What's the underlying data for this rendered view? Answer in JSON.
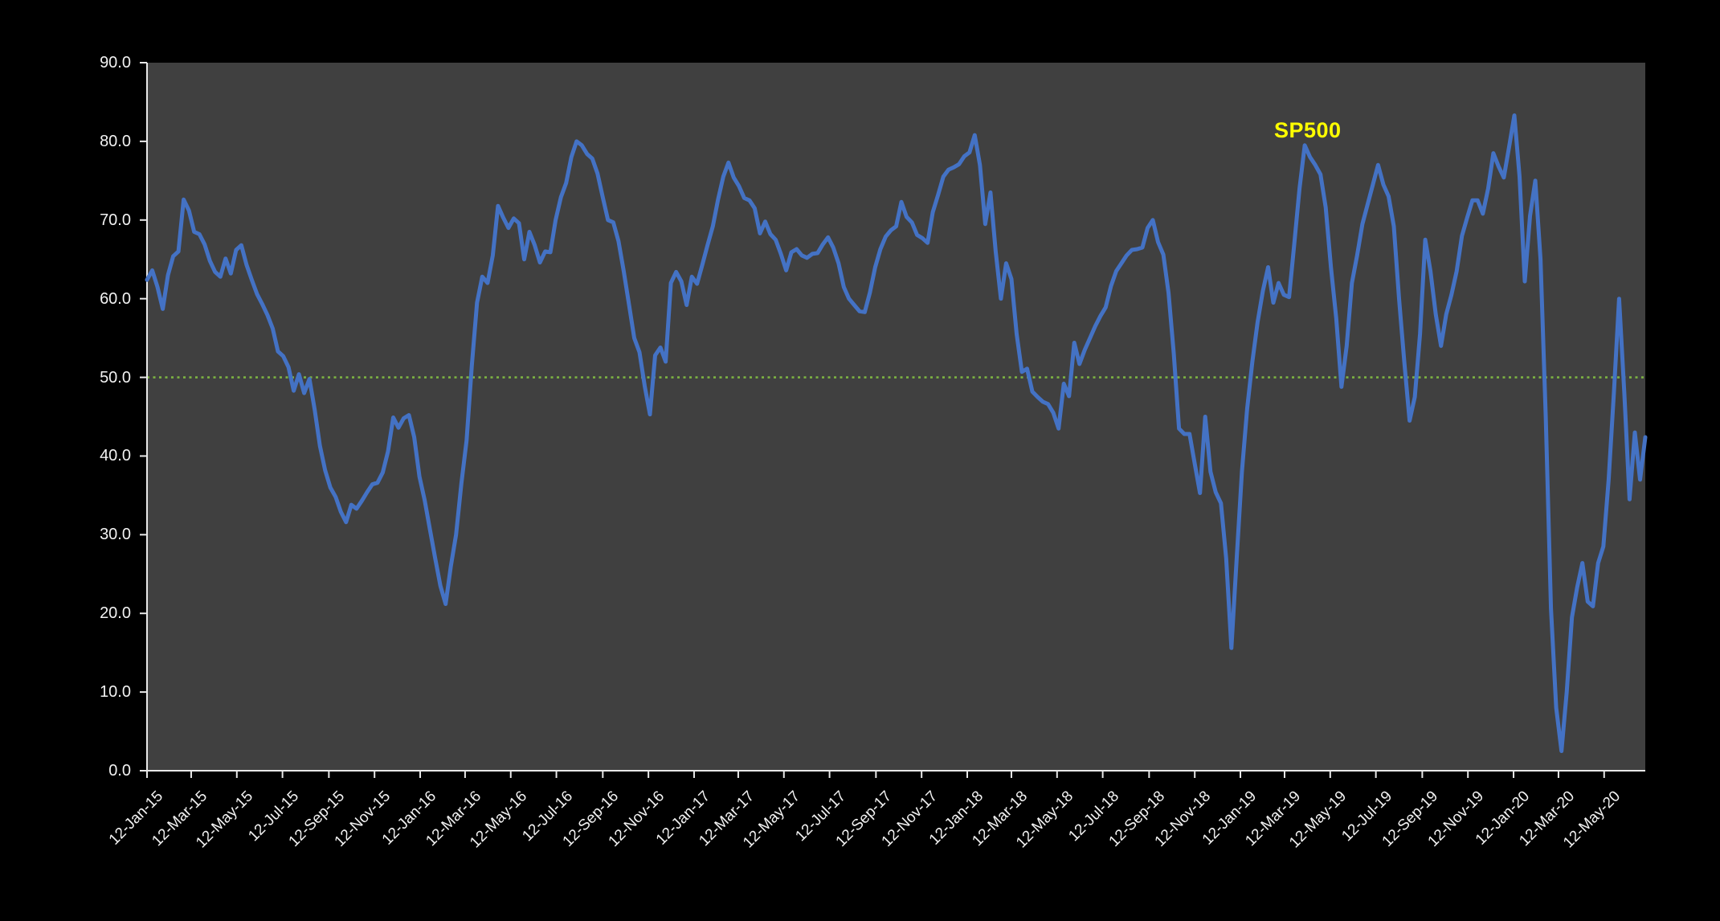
{
  "series_label": "SP500",
  "colors": {
    "page_background": "#000000",
    "plot_background": "#404040",
    "line": "#4472C4",
    "reference_line": "#7CB342",
    "axis": "#E8E8E8",
    "tick_text": "#F2F2F2",
    "series_label_text": "#FFFF00"
  },
  "chart_data": {
    "type": "line",
    "title": "",
    "xlabel": "",
    "ylabel": "",
    "ylim": [
      0,
      90
    ],
    "grid": "off",
    "legend_position": "none",
    "annotation": {
      "text": "SP500",
      "color": "#FFFF00"
    },
    "reference_line": {
      "value": 50,
      "style": "dotted",
      "color": "#7CB342"
    },
    "x_start_date": "2015-01-12",
    "x_step_days": 7,
    "x_tick_labels": [
      "12-Jan-15",
      "12-Mar-15",
      "12-May-15",
      "12-Jul-15",
      "12-Sep-15",
      "12-Nov-15",
      "12-Jan-16",
      "12-Mar-16",
      "12-May-16",
      "12-Jul-16",
      "12-Sep-16",
      "12-Nov-16",
      "12-Jan-17",
      "12-Mar-17",
      "12-May-17",
      "12-Jul-17",
      "12-Sep-17",
      "12-Nov-17",
      "12-Jan-18",
      "12-Mar-18",
      "12-May-18",
      "12-Jul-18",
      "12-Sep-18",
      "12-Nov-18",
      "12-Jan-19",
      "12-Mar-19",
      "12-May-19",
      "12-Jul-19",
      "12-Sep-19",
      "12-Nov-19",
      "12-Jan-20",
      "12-Mar-20",
      "12-May-20"
    ],
    "y_tick_labels": [
      "90.0",
      "80.0",
      "70.0",
      "60.0",
      "50.0",
      "40.0",
      "30.0",
      "20.0",
      "10.0",
      "0.0"
    ],
    "series": [
      {
        "name": "SP500",
        "color": "#4472C4",
        "values": [
          62.4,
          63.6,
          61.5,
          58.7,
          63.0,
          65.4,
          66.0,
          72.6,
          71.2,
          68.5,
          68.2,
          66.9,
          64.8,
          63.4,
          62.8,
          65.1,
          63.2,
          66.2,
          66.8,
          64.3,
          62.4,
          60.6,
          59.3,
          57.9,
          56.2,
          53.3,
          52.7,
          51.3,
          48.3,
          50.4,
          48.0,
          49.8,
          45.9,
          41.3,
          38.2,
          36.0,
          34.8,
          32.9,
          31.6,
          33.8,
          33.3,
          34.3,
          35.4,
          36.4,
          36.6,
          37.9,
          40.6,
          44.9,
          43.6,
          44.8,
          45.2,
          42.4,
          37.4,
          34.4,
          30.7,
          27.0,
          23.5,
          21.2,
          26.0,
          30.0,
          36.5,
          42.0,
          51.5,
          59.5,
          62.8,
          62.0,
          65.5,
          71.8,
          70.3,
          69.0,
          70.2,
          69.6,
          65.0,
          68.5,
          66.8,
          64.6,
          66.0,
          65.9,
          70.0,
          72.9,
          74.7,
          78.0,
          80.0,
          79.5,
          78.4,
          77.8,
          75.9,
          72.9,
          70.0,
          69.7,
          67.3,
          63.5,
          59.3,
          55.0,
          53.2,
          48.9,
          45.3,
          52.8,
          53.8,
          52.0,
          62.0,
          63.4,
          62.2,
          59.2,
          62.8,
          61.9,
          64.3,
          66.8,
          69.2,
          72.6,
          75.5,
          77.3,
          75.4,
          74.3,
          72.8,
          72.5,
          71.5,
          68.3,
          69.8,
          68.2,
          67.5,
          65.7,
          63.6,
          65.9,
          66.3,
          65.5,
          65.2,
          65.7,
          65.8,
          66.9,
          67.8,
          66.5,
          64.5,
          61.5,
          60.0,
          59.2,
          58.4,
          58.3,
          60.8,
          64.0,
          66.3,
          67.9,
          68.7,
          69.2,
          72.3,
          70.4,
          69.7,
          68.1,
          67.7,
          67.1,
          71.0,
          73.2,
          75.5,
          76.4,
          76.7,
          77.1,
          78.1,
          78.6,
          80.8,
          77.0,
          69.5,
          73.5,
          66.0,
          60.0,
          64.5,
          62.5,
          55.5,
          50.7,
          51.1,
          48.2,
          47.5,
          46.9,
          46.6,
          45.5,
          43.5,
          49.2,
          47.6,
          54.4,
          51.7,
          53.5,
          55.0,
          56.5,
          57.8,
          58.9,
          61.6,
          63.5,
          64.5,
          65.5,
          66.2,
          66.3,
          66.5,
          69.0,
          70.0,
          67.2,
          65.6,
          60.7,
          53.0,
          43.5,
          42.8,
          42.8,
          39.0,
          35.3,
          45.0,
          38.0,
          35.4,
          34.0,
          27.0,
          15.6,
          27.0,
          38.0,
          46.0,
          52.0,
          57.0,
          61.0,
          64.0,
          59.5,
          62.0,
          60.5,
          60.2,
          67.0,
          74.0,
          79.5,
          78.0,
          77.0,
          75.8,
          71.6,
          64.0,
          57.5,
          48.8,
          54.0,
          62.0,
          65.5,
          69.5,
          72.0,
          74.5,
          77.0,
          74.5,
          73.0,
          69.2,
          60.0,
          52.0,
          44.5,
          47.5,
          55.5,
          67.5,
          63.5,
          58.0,
          54.0,
          58.0,
          60.5,
          63.5,
          68.0,
          70.3,
          72.5,
          72.5,
          70.8,
          74.0,
          78.5,
          76.8,
          75.4,
          79.3,
          83.3,
          75.5,
          62.2,
          70.5,
          75.0,
          65.0,
          45.0,
          20.6,
          8.0,
          2.5,
          10.0,
          19.5,
          23.3,
          26.4,
          21.5,
          20.9,
          26.4,
          28.5,
          37.0,
          48.0,
          60.0,
          48.0,
          34.5,
          43.0,
          37.0,
          42.4
        ]
      }
    ]
  }
}
